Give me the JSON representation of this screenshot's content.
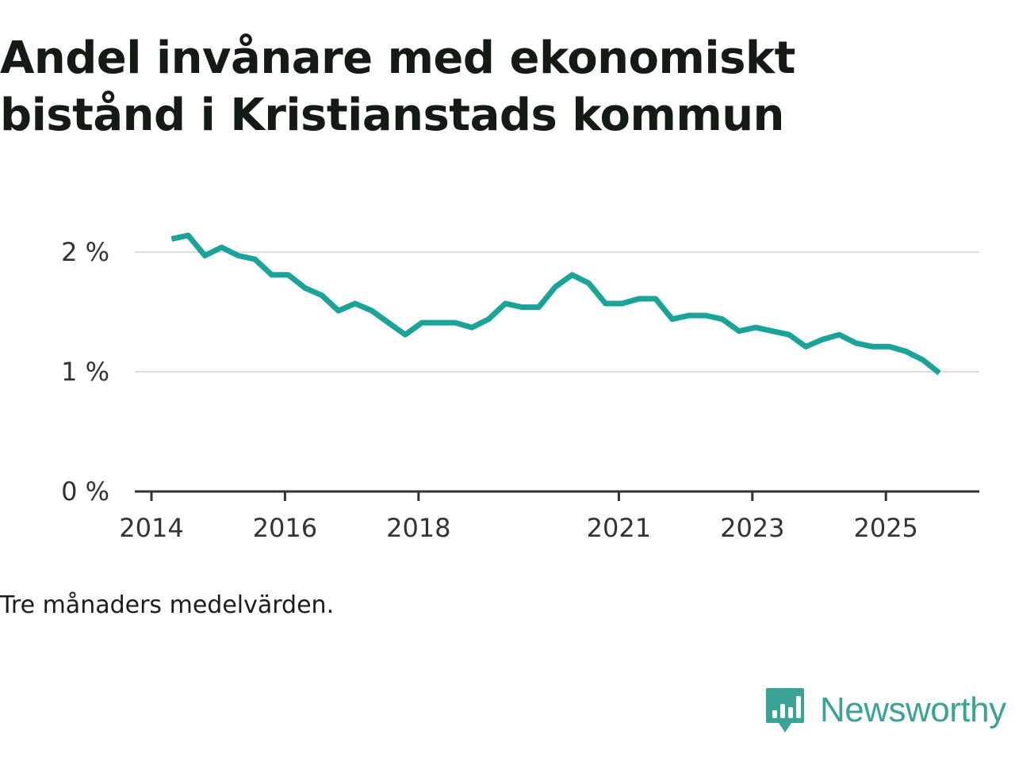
{
  "title_line1": "Andel invånare med ekonomiskt",
  "title_line2": "bistånd i Kristianstads kommun",
  "footnote": "Tre månaders medelvärden.",
  "brand": {
    "name": "Newsworthy",
    "color": "#3aa396"
  },
  "chart_data": {
    "type": "line",
    "title": "Andel invånare med ekonomiskt bistånd i Kristianstads kommun",
    "xlabel": "",
    "ylabel": "",
    "ylim": [
      0,
      2.2
    ],
    "xlim": [
      2014,
      2026.5
    ],
    "grid": true,
    "line_color": "#1aa398",
    "y_ticks": [
      {
        "value": 0,
        "label": "0 %"
      },
      {
        "value": 1,
        "label": "1 %"
      },
      {
        "value": 2,
        "label": "2 %"
      }
    ],
    "x_ticks": [
      {
        "value": 2014,
        "label": "2014"
      },
      {
        "value": 2016,
        "label": "2016"
      },
      {
        "value": 2018,
        "label": "2018"
      },
      {
        "value": 2021,
        "label": "2021"
      },
      {
        "value": 2023,
        "label": "2023"
      },
      {
        "value": 2025,
        "label": "2025"
      }
    ],
    "series": [
      {
        "name": "Andel invånare med ekonomiskt bistånd",
        "x": [
          2014.3,
          2014.55,
          2014.8,
          2015.05,
          2015.3,
          2015.55,
          2015.8,
          2016.05,
          2016.3,
          2016.55,
          2016.8,
          2017.05,
          2017.3,
          2017.55,
          2017.8,
          2018.05,
          2018.3,
          2018.55,
          2018.8,
          2019.05,
          2019.3,
          2019.55,
          2019.8,
          2020.05,
          2020.3,
          2020.55,
          2020.8,
          2021.05,
          2021.3,
          2021.55,
          2021.8,
          2022.05,
          2022.3,
          2022.55,
          2022.8,
          2023.05,
          2023.3,
          2023.55,
          2023.8,
          2024.05,
          2024.3,
          2024.55,
          2024.8,
          2025.05,
          2025.3,
          2025.55,
          2025.8
        ],
        "values": [
          2.11,
          2.14,
          1.97,
          2.04,
          1.97,
          1.94,
          1.81,
          1.81,
          1.7,
          1.64,
          1.51,
          1.57,
          1.51,
          1.41,
          1.31,
          1.41,
          1.41,
          1.41,
          1.37,
          1.44,
          1.57,
          1.54,
          1.54,
          1.71,
          1.81,
          1.74,
          1.57,
          1.57,
          1.61,
          1.61,
          1.44,
          1.47,
          1.47,
          1.44,
          1.34,
          1.37,
          1.34,
          1.31,
          1.21,
          1.27,
          1.31,
          1.24,
          1.21,
          1.21,
          1.17,
          1.1,
          0.99
        ]
      }
    ]
  }
}
